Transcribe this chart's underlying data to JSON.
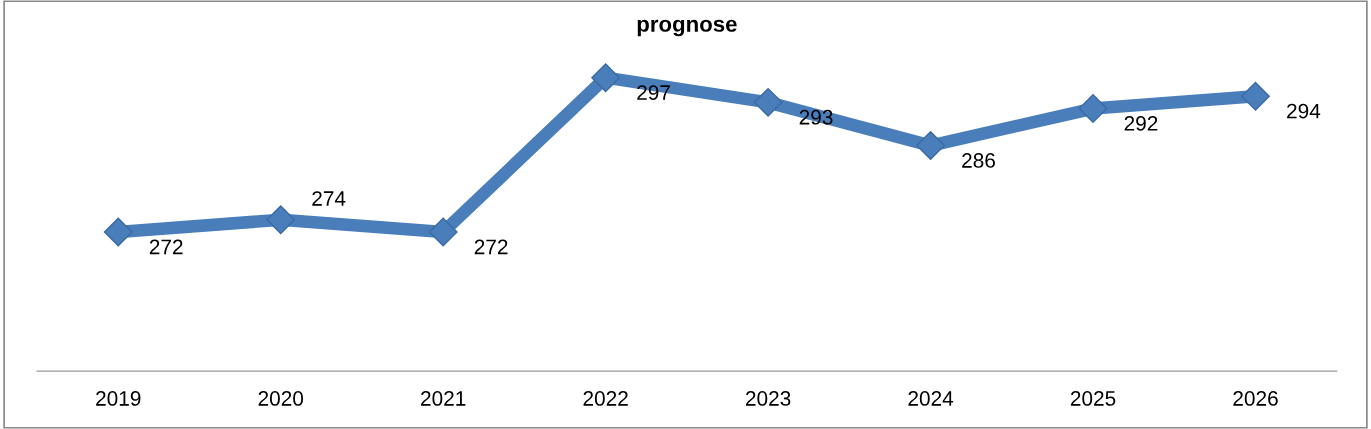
{
  "chart_data": {
    "type": "line",
    "title": "prognose",
    "categories": [
      "2019",
      "2020",
      "2021",
      "2022",
      "2023",
      "2024",
      "2025",
      "2026"
    ],
    "series": [
      {
        "color": "#4a7ebb",
        "values": [
          272,
          274,
          272,
          297,
          293,
          286,
          292,
          294
        ]
      }
    ],
    "data_labels": true,
    "marker": "diamond",
    "line_style": "solid",
    "grid": false,
    "legend": false
  }
}
